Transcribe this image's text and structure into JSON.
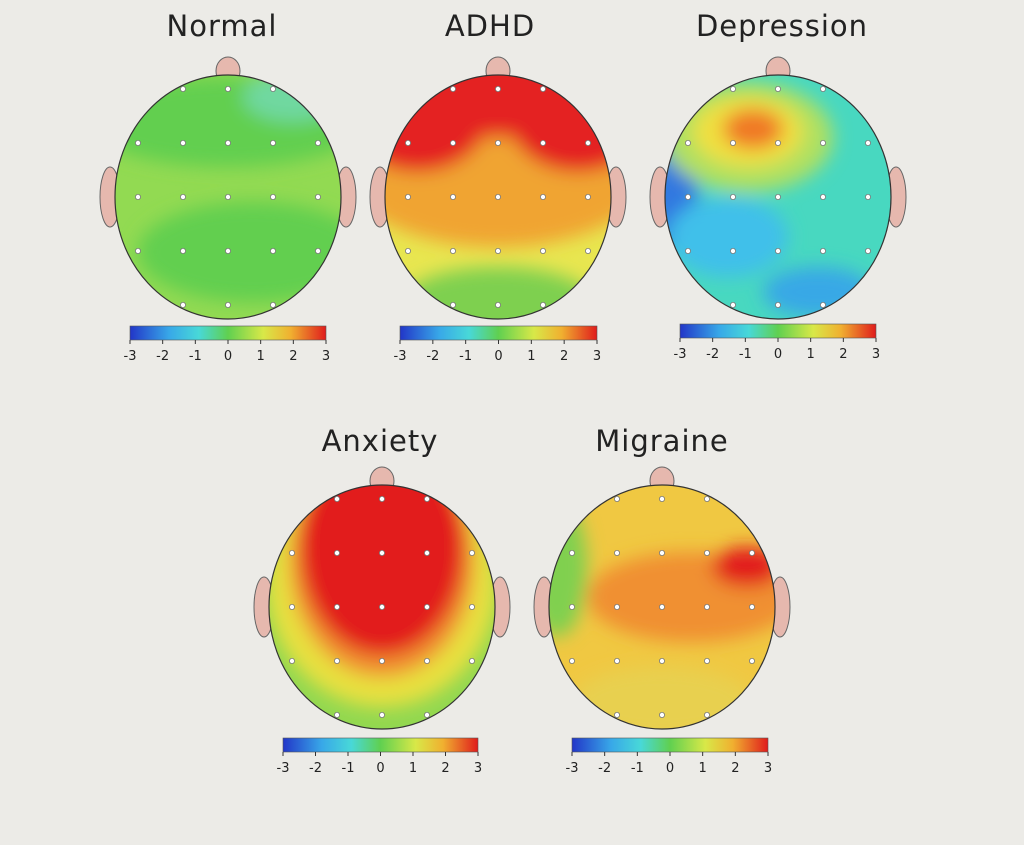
{
  "maps": [
    {
      "title": "Normal",
      "colorbar_ticks": [
        -3,
        -2,
        -1,
        0,
        1,
        2,
        3
      ]
    },
    {
      "title": "ADHD",
      "colorbar_ticks": [
        -3,
        -2,
        -1,
        0,
        1,
        2,
        3
      ]
    },
    {
      "title": "Depression",
      "colorbar_ticks": [
        -3,
        -2,
        -1,
        0,
        1,
        2,
        3
      ]
    },
    {
      "title": "Anxiety",
      "colorbar_ticks": [
        -3,
        -2,
        -1,
        0,
        1,
        2,
        3
      ]
    },
    {
      "title": "Migraine",
      "colorbar_ticks": [
        -3,
        -2,
        -1,
        0,
        1,
        2,
        3
      ]
    }
  ]
}
